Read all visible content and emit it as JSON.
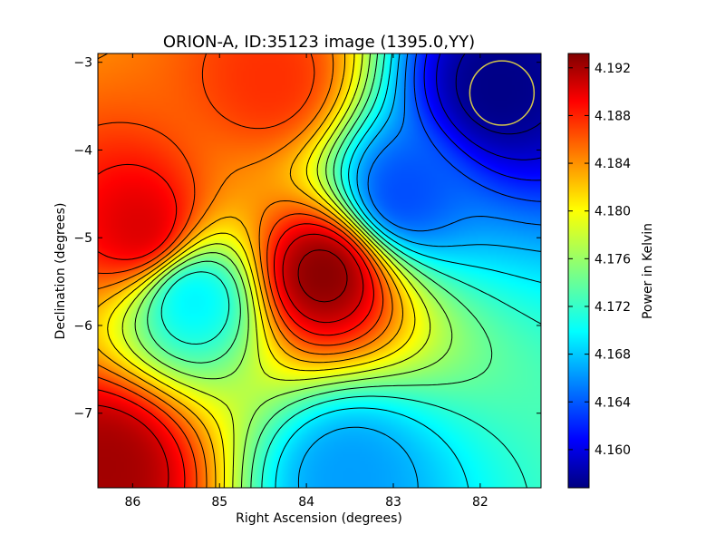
{
  "chart_data": {
    "type": "heatmap",
    "title": "ORION-A, ID:35123 image (1395.0,YY)",
    "xlabel": "Right Ascension (degrees)",
    "ylabel": "Declination (degrees)",
    "x_ticks": [
      "86",
      "85",
      "84",
      "83",
      "82"
    ],
    "y_ticks": [
      "−3",
      "−4",
      "−5",
      "−6",
      "−7"
    ],
    "xlim": [
      86.4,
      81.3
    ],
    "ylim": [
      -7.85,
      -2.9
    ],
    "x_inverted": true,
    "colormap": "jet",
    "contours": true,
    "colorbar": {
      "label": "Power in Kelvin",
      "range": [
        4.1568,
        4.1932
      ],
      "ticks": [
        "4.160",
        "4.164",
        "4.168",
        "4.172",
        "4.176",
        "4.180",
        "4.184",
        "4.188",
        "4.192"
      ]
    },
    "features": [
      {
        "kind": "max",
        "ra": 85.9,
        "dec": -4.9,
        "value": 4.19
      },
      {
        "kind": "max",
        "ra": 83.8,
        "dec": -5.4,
        "value": 4.193
      },
      {
        "kind": "max",
        "ra": 86.3,
        "dec": -7.6,
        "value": 4.192
      },
      {
        "kind": "max",
        "ra": 84.4,
        "dec": -3.2,
        "value": 4.187
      },
      {
        "kind": "min",
        "ra": 81.8,
        "dec": -3.3,
        "value": 4.157
      },
      {
        "kind": "min",
        "ra": 82.9,
        "dec": -4.5,
        "value": 4.164
      },
      {
        "kind": "min",
        "ra": 83.5,
        "dec": -7.7,
        "value": 4.167
      },
      {
        "kind": "min",
        "ra": 85.3,
        "dec": -5.7,
        "value": 4.17
      }
    ],
    "beam_circle": {
      "ra": 81.75,
      "dec": -3.35,
      "radius_deg": 0.37,
      "color": "#d4c64a"
    }
  }
}
